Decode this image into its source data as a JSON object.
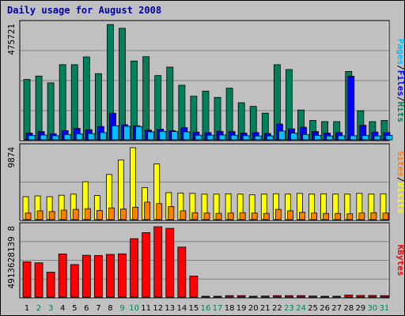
{
  "chart_data": {
    "title": "Daily usage for August 2008",
    "type": "bar",
    "categories": [
      1,
      2,
      3,
      4,
      5,
      6,
      7,
      8,
      9,
      10,
      11,
      12,
      13,
      14,
      15,
      16,
      17,
      18,
      19,
      20,
      21,
      22,
      23,
      24,
      25,
      26,
      27,
      28,
      29,
      30,
      31
    ],
    "weekend_days": [
      2,
      3,
      9,
      10,
      16,
      17,
      23,
      24,
      30,
      31
    ],
    "panels": [
      {
        "name": "hits-files-pages",
        "ymax_label": "475721",
        "ymax": 475721,
        "gridlines": 3,
        "series": [
          {
            "name": "Hits",
            "color": "#00805c",
            "values": [
              249000,
              263000,
              235000,
              310000,
              310000,
              342000,
              273000,
              475721,
              460000,
              325000,
              343000,
              265000,
              300000,
              225000,
              180000,
              201000,
              175000,
              213000,
              153000,
              138000,
              110000,
              310000,
              290000,
              123000,
              80000,
              75000,
              75000,
              282000,
              120000,
              75000,
              80000
            ]
          },
          {
            "name": "Files",
            "color": "#0000ff",
            "values": [
              28000,
              34000,
              25000,
              38000,
              47000,
              42000,
              55000,
              110000,
              62000,
              58000,
              40000,
              44000,
              38000,
              50000,
              32000,
              30000,
              35000,
              34000,
              28000,
              30000,
              26000,
              65000,
              45000,
              52000,
              34000,
              28000,
              30000,
              262000,
              60000,
              32000,
              30000
            ]
          },
          {
            "name": "Pages",
            "color": "#00c0ff",
            "values": [
              18000,
              20000,
              17000,
              22000,
              25000,
              26000,
              30000,
              58000,
              56000,
              55000,
              33000,
              35000,
              34000,
              33000,
              19000,
              19000,
              20000,
              19000,
              17000,
              16000,
              16000,
              36000,
              28000,
              22000,
              18000,
              16000,
              17000,
              17000,
              18000,
              16000,
              18000
            ]
          }
        ],
        "legend_labels": [
          "Pages",
          "/",
          "Files",
          "/",
          "Hits"
        ]
      },
      {
        "name": "visits-sites",
        "ymax_label": "9874",
        "ymax": 9874,
        "gridlines": 1,
        "series": [
          {
            "name": "Visits",
            "color": "#ffff00",
            "values": [
              3150,
              3250,
              3150,
              3350,
              3500,
              5200,
              3300,
              6200,
              8200,
              9874,
              4400,
              7650,
              3700,
              3650,
              3600,
              3500,
              3500,
              3550,
              3500,
              3400,
              3500,
              3550,
              3500,
              3600,
              3500,
              3550,
              3500,
              3500,
              3600,
              3500,
              3550
            ]
          },
          {
            "name": "Sites",
            "color": "#ff8000",
            "values": [
              900,
              1200,
              1100,
              1300,
              1400,
              1500,
              1250,
              1600,
              1450,
              1700,
              2400,
              2200,
              1800,
              1200,
              950,
              900,
              850,
              900,
              950,
              900,
              850,
              1400,
              1200,
              1000,
              900,
              850,
              850,
              800,
              900,
              950,
              900
            ]
          }
        ],
        "legend_labels": [
          "Sites",
          "/",
          "Visits"
        ]
      },
      {
        "name": "kbytes",
        "ymax_label": "4913628139 8",
        "ymax": 49136281398,
        "gridlines": 3,
        "series": [
          {
            "name": "KBytes",
            "color": "#ff0000",
            "values": [
              24600000000,
              23900000000,
              17400000000,
              30100000000,
              22700000000,
              29200000000,
              29000000000,
              29800000000,
              30200000000,
              40800000000,
              45000000000,
              49136281398,
              48000000000,
              34900000000,
              14700000000,
              400000000,
              400000000,
              1000000000,
              1000000000,
              400000000,
              700000000,
              1000000000,
              1000000000,
              1000000000,
              700000000,
              400000000,
              400000000,
              1400000000,
              1100000000,
              1100000000,
              1000000000
            ]
          }
        ],
        "legend_labels": [
          "KBytes"
        ]
      }
    ]
  },
  "colors": {
    "background": "#c0c0c0",
    "panel": "#c0c0c0",
    "grid": "#808080",
    "weekday_label": "#000000",
    "weekend_label": "#00805c",
    "title": "#0000a0"
  }
}
